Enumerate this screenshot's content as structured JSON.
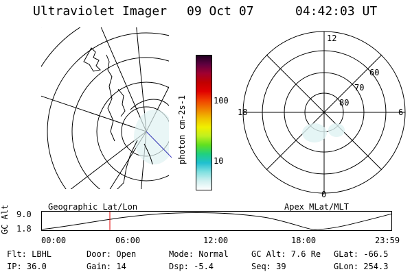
{
  "header": {
    "instrument": "Ultraviolet Imager",
    "date": "09 Oct 07",
    "time": "04:42:03 UT"
  },
  "colorbar": {
    "unit_label": "photon cm-2s-1",
    "ticks": [
      "100",
      "10"
    ],
    "colors": [
      "#ffffff",
      "#d0f0f0",
      "#80e0e0",
      "#20c0d0",
      "#20d080",
      "#60e020",
      "#c0f020",
      "#f0f000",
      "#f0c000",
      "#f08000",
      "#f04000",
      "#e00000",
      "#c00000",
      "#a00030",
      "#600040",
      "#200020"
    ]
  },
  "geo_panel": {
    "label": "Geographic Lat/Lon"
  },
  "polar_panel": {
    "label": "Apex MLat/MLT",
    "mlt_labels": {
      "top": "12",
      "left": "18",
      "right": "6",
      "bottom": "0"
    },
    "lat_labels": [
      "60",
      "70",
      "80"
    ]
  },
  "altitude_plot": {
    "ylabel": "GC Alt",
    "yticks": [
      "9.0",
      "1.8"
    ],
    "xticks": [
      "00:00",
      "06:00",
      "12:00",
      "18:00",
      "23:59"
    ],
    "marker_color": "#e00000"
  },
  "info": {
    "filter": "Flt: LBHL",
    "ip": "IP: 36.0",
    "door": "Door: Open",
    "gain": "Gain: 14",
    "mode": "Mode: Normal",
    "dsp": "Dsp:   -5.4",
    "gc_alt": "GC Alt: 7.6 Re",
    "seq": "Seq: 39",
    "glat": "GLat: -66.5",
    "glon": "GLon: 254.3"
  }
}
